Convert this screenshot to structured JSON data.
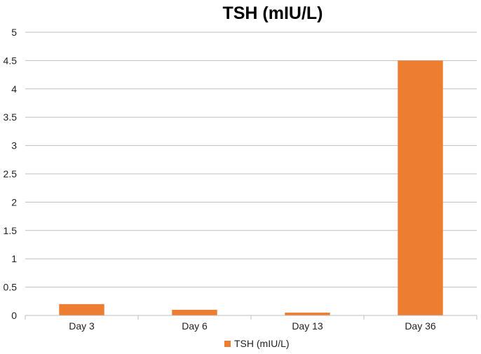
{
  "chart_data": {
    "type": "bar",
    "title": "TSH (mIU/L)",
    "categories": [
      "Day 3",
      "Day 6",
      "Day 13",
      "Day 36"
    ],
    "series": [
      {
        "name": "TSH (mIU/L)",
        "values": [
          0.2,
          0.1,
          0.05,
          4.5
        ],
        "color": "#ED7D31"
      }
    ],
    "xlabel": "",
    "ylabel": "",
    "ylim": [
      0,
      5
    ],
    "yticks": [
      "0",
      "0.5",
      "1",
      "1.5",
      "2",
      "2.5",
      "3",
      "3.5",
      "4",
      "4.5",
      "5"
    ],
    "grid": true,
    "gridColor": "#BFBFBF",
    "legend_position": "bottom"
  }
}
